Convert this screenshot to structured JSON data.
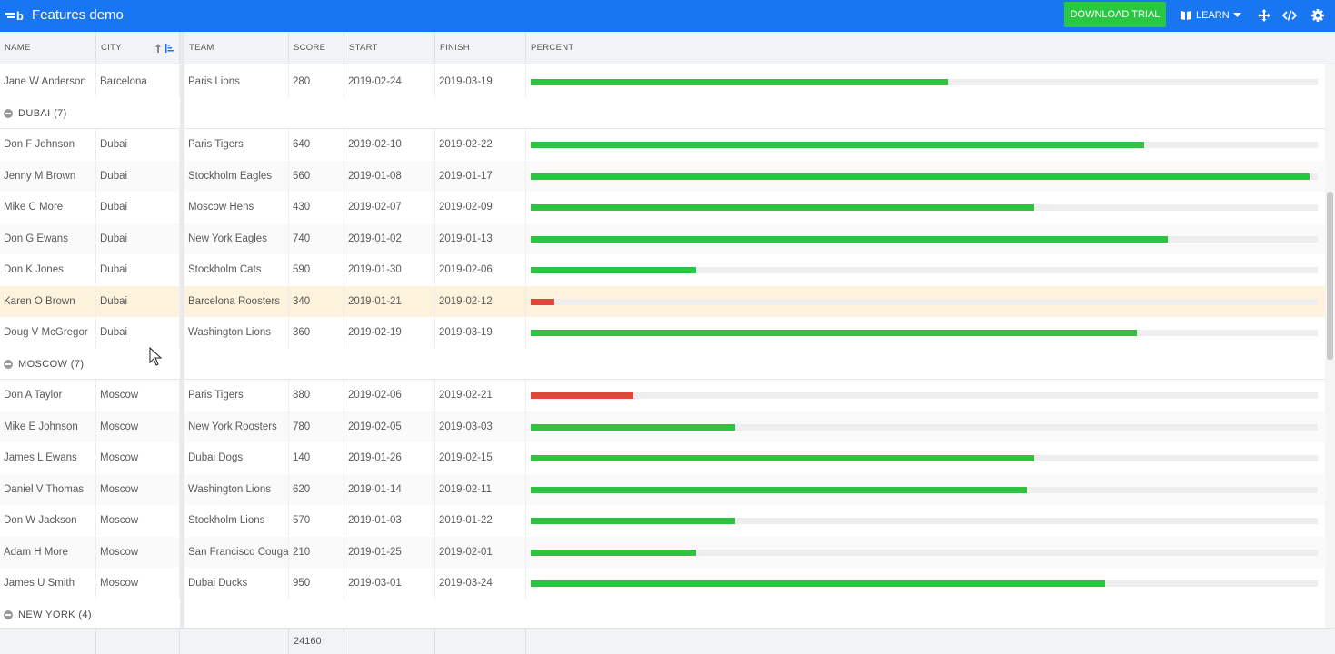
{
  "app": {
    "title": "Features demo",
    "download_label": "DOWNLOAD TRIAL",
    "learn_label": "LEARN",
    "icons": [
      "logo-icon",
      "book-icon",
      "chevron-down-icon",
      "move-icon",
      "code-icon",
      "gear-icon"
    ]
  },
  "columns": {
    "name": "NAME",
    "city": "CITY",
    "team": "TEAM",
    "score": "SCORE",
    "start": "START",
    "finish": "FINISH",
    "percent": "PERCENT"
  },
  "colors": {
    "accent": "#1976f2",
    "trial": "#28c840",
    "bar_good": "#2ec441",
    "bar_bad": "#e0463a",
    "highlight": "#fdf2dc"
  },
  "rows_barcelona_tail": [
    {
      "name": "Jane W Anderson",
      "city": "Barcelona",
      "team": "Paris Lions",
      "score": "280",
      "start": "2019-02-24",
      "finish": "2019-03-19",
      "percent": 53,
      "status": "good"
    }
  ],
  "groups": [
    {
      "label": "DUBAI (7)",
      "rows": [
        {
          "name": "Don F Johnson",
          "city": "Dubai",
          "team": "Paris Tigers",
          "score": "640",
          "start": "2019-02-10",
          "finish": "2019-02-22",
          "percent": 78,
          "status": "good"
        },
        {
          "name": "Jenny M Brown",
          "city": "Dubai",
          "team": "Stockholm Eagles",
          "score": "560",
          "start": "2019-01-08",
          "finish": "2019-01-17",
          "percent": 99,
          "status": "good"
        },
        {
          "name": "Mike C More",
          "city": "Dubai",
          "team": "Moscow Hens",
          "score": "430",
          "start": "2019-02-07",
          "finish": "2019-02-09",
          "percent": 64,
          "status": "good"
        },
        {
          "name": "Don G Ewans",
          "city": "Dubai",
          "team": "New York Eagles",
          "score": "740",
          "start": "2019-01-02",
          "finish": "2019-01-13",
          "percent": 81,
          "status": "good"
        },
        {
          "name": "Don K Jones",
          "city": "Dubai",
          "team": "Stockholm Cats",
          "score": "590",
          "start": "2019-01-30",
          "finish": "2019-02-06",
          "percent": 21,
          "status": "good"
        },
        {
          "name": "Karen O Brown",
          "city": "Dubai",
          "team": "Barcelona Roosters",
          "score": "340",
          "start": "2019-01-21",
          "finish": "2019-02-12",
          "percent": 3,
          "status": "bad",
          "highlight": true
        },
        {
          "name": "Doug V McGregor",
          "city": "Dubai",
          "team": "Washington Lions",
          "score": "360",
          "start": "2019-02-19",
          "finish": "2019-03-19",
          "percent": 77,
          "status": "good"
        }
      ]
    },
    {
      "label": "MOSCOW (7)",
      "rows": [
        {
          "name": "Don A Taylor",
          "city": "Moscow",
          "team": "Paris Tigers",
          "score": "880",
          "start": "2019-02-06",
          "finish": "2019-02-21",
          "percent": 13,
          "status": "bad"
        },
        {
          "name": "Mike E Johnson",
          "city": "Moscow",
          "team": "New York Roosters",
          "score": "780",
          "start": "2019-02-05",
          "finish": "2019-03-03",
          "percent": 26,
          "status": "good"
        },
        {
          "name": "James L Ewans",
          "city": "Moscow",
          "team": "Dubai Dogs",
          "score": "140",
          "start": "2019-01-26",
          "finish": "2019-02-15",
          "percent": 64,
          "status": "good"
        },
        {
          "name": "Daniel V Thomas",
          "city": "Moscow",
          "team": "Washington Lions",
          "score": "620",
          "start": "2019-01-14",
          "finish": "2019-02-11",
          "percent": 63,
          "status": "good"
        },
        {
          "name": "Don W Jackson",
          "city": "Moscow",
          "team": "Stockholm Lions",
          "score": "570",
          "start": "2019-01-03",
          "finish": "2019-01-22",
          "percent": 26,
          "status": "good"
        },
        {
          "name": "Adam H More",
          "city": "Moscow",
          "team": "San Francisco Cougars",
          "score": "210",
          "start": "2019-01-25",
          "finish": "2019-02-01",
          "percent": 21,
          "status": "good"
        },
        {
          "name": "James U Smith",
          "city": "Moscow",
          "team": "Dubai Ducks",
          "score": "950",
          "start": "2019-03-01",
          "finish": "2019-03-24",
          "percent": 73,
          "status": "good"
        }
      ]
    },
    {
      "label": "NEW YORK (4)",
      "rows": []
    }
  ],
  "footer": {
    "score_total": "24160"
  }
}
